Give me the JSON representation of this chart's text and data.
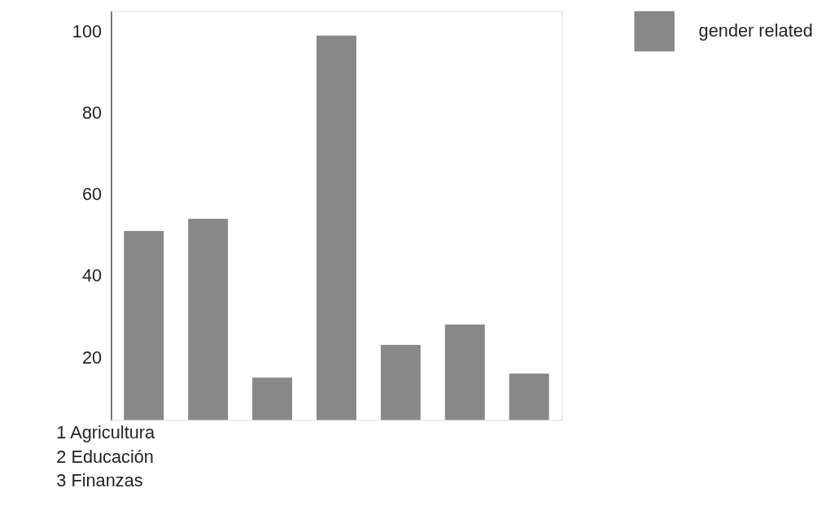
{
  "chart_data": {
    "type": "bar",
    "categories": [
      null,
      null,
      null,
      null,
      null,
      null,
      null
    ],
    "series": [
      {
        "name": "gender related",
        "color": "#888888",
        "values": [
          51,
          54,
          15,
          99,
          23,
          28,
          16
        ]
      }
    ],
    "ylim": [
      4.6,
      105
    ],
    "yticks": [
      20,
      40,
      60,
      80,
      100
    ],
    "grid": false,
    "legend": "right",
    "annotations": [
      "1 Agricultura",
      "2 Educación",
      "3 Finanzas"
    ]
  }
}
